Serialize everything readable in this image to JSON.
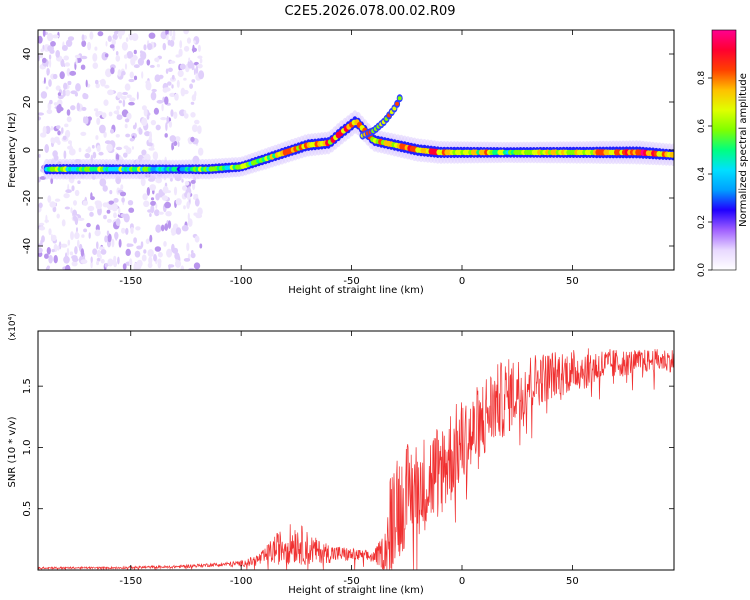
{
  "title": "C2E5.2026.078.00.02.R09",
  "chart_data": [
    {
      "type": "heatmap",
      "xlabel": "Height of straight line (km)",
      "ylabel": "Frequency (Hz)",
      "xlim": [
        -192,
        96
      ],
      "ylim": [
        -50,
        50
      ],
      "xticks": [
        -150,
        -100,
        -50,
        0,
        50
      ],
      "yticks": [
        -40,
        -20,
        0,
        20,
        40
      ],
      "colorbar": {
        "label": "Normalized spectral amplitude",
        "range": [
          0,
          1
        ],
        "ticks": [
          "0.0",
          "0.2",
          "0.4",
          "0.6",
          "0.8"
        ],
        "colors": [
          "#ffffff",
          "#e8d8ff",
          "#a060ff",
          "#2000ff",
          "#00a0ff",
          "#00e0ff",
          "#00ff80",
          "#80ff00",
          "#e0ff00",
          "#ffc000",
          "#ff4000",
          "#ff0030",
          "#ff0090"
        ]
      },
      "ridge": {
        "x": [
          -188,
          -170,
          -150,
          -130,
          -115,
          -100,
          -90,
          -80,
          -70,
          -60,
          -55,
          -48,
          -40,
          -30,
          -20,
          -10,
          0,
          20,
          50,
          80,
          95
        ],
        "freq": [
          -8,
          -8,
          -8,
          -8,
          -8,
          -7,
          -4,
          -1,
          2,
          3,
          7,
          12,
          4,
          2,
          0,
          -1,
          -1,
          -1,
          -1,
          -1,
          -2
        ],
        "amplitude": [
          0.55,
          0.55,
          0.5,
          0.4,
          0.55,
          0.5,
          0.6,
          0.7,
          0.75,
          0.75,
          0.85,
          0.8,
          0.7,
          0.75,
          0.8,
          0.75,
          0.7,
          0.6,
          0.7,
          0.85,
          0.7
        ]
      },
      "branch": {
        "x": [
          -45,
          -40,
          -35,
          -30,
          -27
        ],
        "freq": [
          6,
          8,
          12,
          18,
          24
        ]
      }
    },
    {
      "type": "line",
      "xlabel": "Height of straight line (km)",
      "ylabel": "SNR (10 * v/v)",
      "scale_note": "(x10⁴)",
      "xlim": [
        -192,
        96
      ],
      "ylim": [
        0,
        1.95
      ],
      "xticks": [
        -150,
        -100,
        -50,
        0,
        50
      ],
      "yticks": [
        "0.5",
        "1.0",
        "1.5"
      ],
      "ytick_values": [
        0.5,
        1.0,
        1.5
      ],
      "series": [
        {
          "name": "SNR",
          "color": "#f03030",
          "x": [
            -192,
            -160,
            -130,
            -110,
            -100,
            -95,
            -90,
            -85,
            -80,
            -75,
            -70,
            -65,
            -60,
            -55,
            -50,
            -45,
            -40,
            -35,
            -32,
            -30,
            -28,
            -25,
            -20,
            -15,
            -10,
            -5,
            0,
            5,
            10,
            15,
            20,
            25,
            30,
            40,
            50,
            60,
            70,
            80,
            90,
            96
          ],
          "base": [
            0.02,
            0.02,
            0.03,
            0.05,
            0.06,
            0.08,
            0.12,
            0.2,
            0.25,
            0.28,
            0.22,
            0.18,
            0.16,
            0.15,
            0.14,
            0.13,
            0.12,
            0.2,
            0.55,
            0.75,
            0.65,
            0.75,
            0.8,
            0.85,
            0.95,
            1.05,
            1.15,
            1.2,
            1.35,
            1.45,
            1.5,
            1.55,
            1.6,
            1.65,
            1.68,
            1.7,
            1.72,
            1.73,
            1.74,
            1.74
          ],
          "noise": [
            0.01,
            0.01,
            0.015,
            0.02,
            0.03,
            0.05,
            0.08,
            0.15,
            0.2,
            0.22,
            0.18,
            0.12,
            0.1,
            0.08,
            0.07,
            0.06,
            0.06,
            0.2,
            0.6,
            0.6,
            0.55,
            0.5,
            0.5,
            0.5,
            0.5,
            0.5,
            0.45,
            0.45,
            0.45,
            0.4,
            0.4,
            0.35,
            0.3,
            0.25,
            0.22,
            0.2,
            0.15,
            0.12,
            0.12,
            0.12
          ]
        }
      ]
    }
  ]
}
